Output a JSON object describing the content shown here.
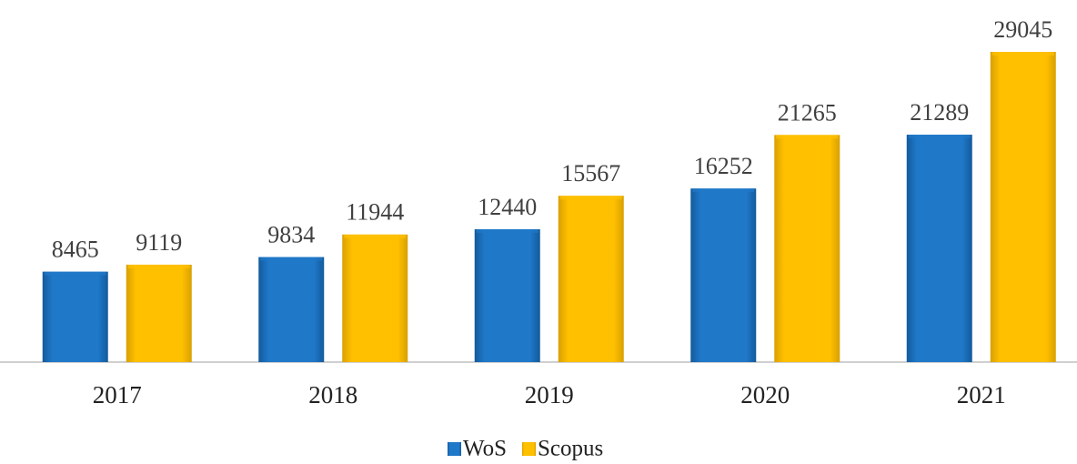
{
  "chart_data": {
    "type": "bar",
    "categories": [
      "2017",
      "2018",
      "2019",
      "2020",
      "2021"
    ],
    "series": [
      {
        "name": "WoS",
        "color": "#1f78c8",
        "values": [
          8465,
          9834,
          12440,
          16252,
          21289
        ]
      },
      {
        "name": "Scopus",
        "color": "#ffc000",
        "values": [
          9119,
          11944,
          15567,
          21265,
          29045
        ]
      }
    ],
    "legend": "bottom"
  }
}
